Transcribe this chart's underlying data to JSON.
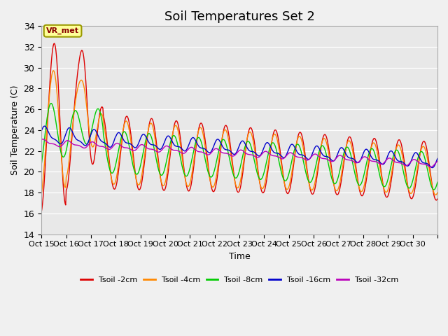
{
  "title": "Soil Temperatures Set 2",
  "xlabel": "Time",
  "ylabel": "Soil Temperature (C)",
  "ylim": [
    14,
    34
  ],
  "yticks": [
    14,
    16,
    18,
    20,
    22,
    24,
    26,
    28,
    30,
    32,
    34
  ],
  "x_tick_labels": [
    "Oct 15",
    "Oct 16",
    "Oct 17",
    "Oct 18",
    "Oct 19",
    "Oct 20",
    "Oct 21",
    "Oct 22",
    "Oct 23",
    "Oct 24",
    "Oct 25",
    "Oct 26",
    "Oct 27",
    "Oct 28",
    "Oct 29",
    "Oct 30",
    ""
  ],
  "x_tick_positions": [
    0,
    1,
    2,
    3,
    4,
    5,
    6,
    7,
    8,
    9,
    10,
    11,
    12,
    13,
    14,
    15,
    16
  ],
  "legend_labels": [
    "Tsoil -2cm",
    "Tsoil -4cm",
    "Tsoil -8cm",
    "Tsoil -16cm",
    "Tsoil -32cm"
  ],
  "colors": [
    "#dd0000",
    "#ff8800",
    "#00cc00",
    "#0000cc",
    "#bb00bb"
  ],
  "annotation_text": "VR_met",
  "fig_bg_color": "#f0f0f0",
  "plot_bg_color": "#e8e8e8",
  "grid_color": "#ffffff",
  "title_fontsize": 13,
  "axis_fontsize": 9,
  "legend_fontsize": 8
}
